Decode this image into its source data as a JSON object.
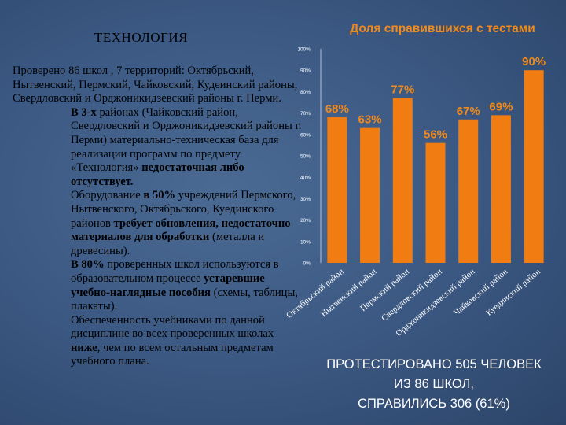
{
  "left": {
    "title": "ТЕХНОЛОГИЯ",
    "paragraphs": [
      {
        "indent": false,
        "parts": [
          {
            "t": "Проверено 86  школ , 7 территорий: Октябрьский, Нытвенский, Пермский, Чайковский, Кудеинский районы, Свердловский и Орджоникидзевский районы г. Перми.",
            "b": false
          }
        ]
      },
      {
        "indent": true,
        "parts": [
          {
            "t": "В 3-х ",
            "b": true
          },
          {
            "t": "районах (Чайковский район, Свердловский и Орджоникидзевский районы г. Перми) материально-техническая база для реализации  программ по предмету «Технология» ",
            "b": false
          },
          {
            "t": "недостаточная либо отсутствует.",
            "b": true
          }
        ]
      },
      {
        "indent": true,
        "parts": [
          {
            "t": "Оборудование ",
            "b": false
          },
          {
            "t": "в 50%",
            "b": true
          },
          {
            "t": " учреждений Пермского, Нытвенского, Октябрьского, Куединского районов ",
            "b": false
          },
          {
            "t": "требует обновления, недостаточно материалов для обработки",
            "b": true
          },
          {
            "t": " (металла и древесины).",
            "b": false
          }
        ]
      },
      {
        "indent": true,
        "parts": [
          {
            "t": "В 80%",
            "b": true
          },
          {
            "t": " проверенных школ используются в образовательном процессе ",
            "b": false
          },
          {
            "t": "устаревшие учебно-наглядные пособия",
            "b": true
          },
          {
            "t": " (схемы, таблицы, плакаты).",
            "b": false
          }
        ]
      },
      {
        "indent": true,
        "parts": [
          {
            "t": "Обеспеченность учебниками по данной дисциплине во всех проверенных школах ",
            "b": false
          },
          {
            "t": "ниже",
            "b": true
          },
          {
            "t": ", чем по всем остальным предметам учебного плана.",
            "b": false
          }
        ]
      }
    ]
  },
  "summary": {
    "line1": "ПРОТЕСТИРОВАНО 505 ЧЕЛОВЕК",
    "line2": "ИЗ 86 ШКОЛ,",
    "line3": "СПРАВИЛИСЬ 306 (61%)"
  },
  "chart_data": {
    "type": "bar",
    "title": "Доля справившихся с тестами",
    "categories": [
      "Октябрьский район",
      "Нытвенский район",
      "Пермский район",
      "Свердловский район",
      "Орджоникидзевский район",
      "Чайковский район",
      "Куединский район"
    ],
    "values": [
      68,
      63,
      77,
      56,
      67,
      69,
      90
    ],
    "data_labels": [
      "68%",
      "63%",
      "77%",
      "56%",
      "67%",
      "69%",
      "90%"
    ],
    "yticks": [
      "0%",
      "10%",
      "20%",
      "30%",
      "40%",
      "50%",
      "60%",
      "70%",
      "80%",
      "90%",
      "100%"
    ],
    "ylim": [
      0,
      100
    ],
    "grid": false,
    "legend": "none",
    "bar_color": "#f07c12",
    "label_color": "#f08a1c",
    "axis_text_color": "#ffffff"
  }
}
